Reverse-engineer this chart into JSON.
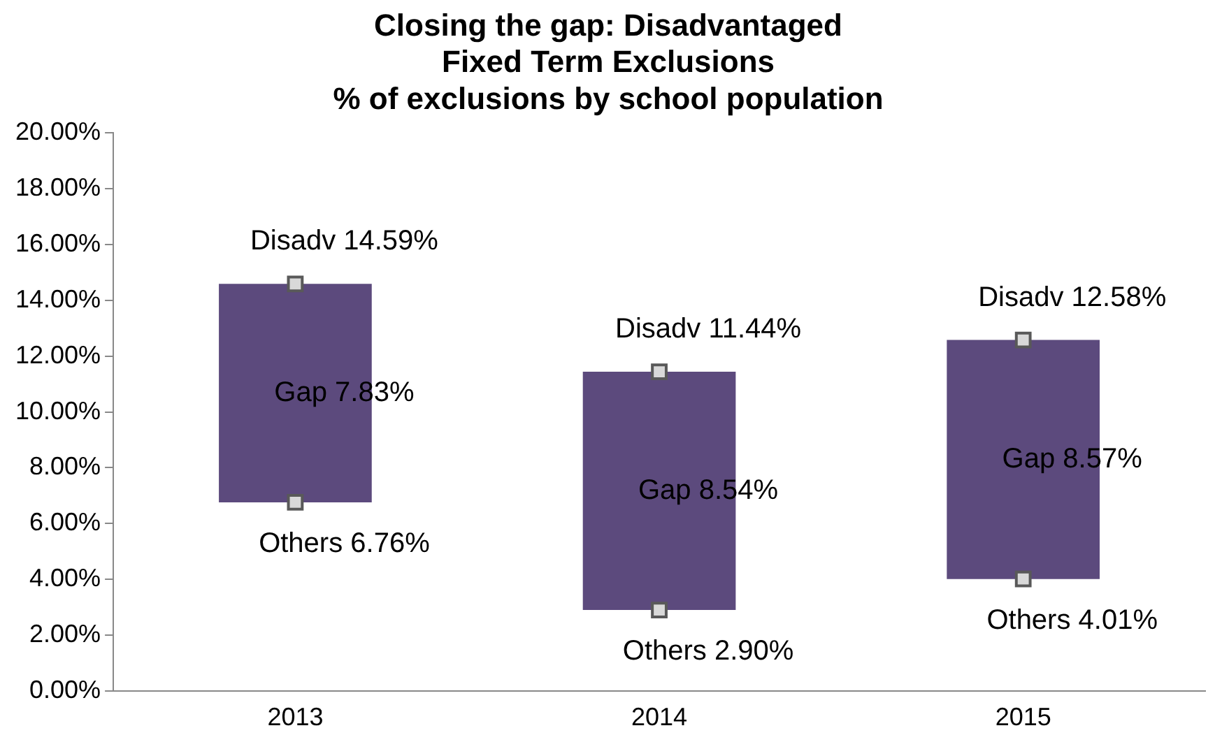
{
  "chart_data": {
    "type": "bar",
    "title": "Closing the gap: Disadvantaged\nFixed Term Exclusions\n% of exclusions by school population",
    "categories": [
      "2013",
      "2014",
      "2015"
    ],
    "ylim": [
      0,
      20
    ],
    "yticks": [
      {
        "value": 0,
        "label": "0.00%"
      },
      {
        "value": 2,
        "label": "2.00%"
      },
      {
        "value": 4,
        "label": "4.00%"
      },
      {
        "value": 6,
        "label": "6.00%"
      },
      {
        "value": 8,
        "label": "8.00%"
      },
      {
        "value": 10,
        "label": "10.00%"
      },
      {
        "value": 12,
        "label": "12.00%"
      },
      {
        "value": 14,
        "label": "14.00%"
      },
      {
        "value": 16,
        "label": "16.00%"
      },
      {
        "value": 18,
        "label": "18.00%"
      },
      {
        "value": 20,
        "label": "20.00%"
      }
    ],
    "grid": false,
    "legend": false,
    "series": [
      {
        "color": "#5c4a7d",
        "base": [
          6.76,
          2.9,
          4.01
        ],
        "values": [
          7.83,
          8.54,
          8.57
        ],
        "value_labels": [
          "Gap 7.83%",
          "Gap 8.54%",
          "Gap 8.57%"
        ]
      },
      {
        "type": "scatter",
        "marker": "square",
        "color": "#d9d9d9",
        "values": [
          14.59,
          11.44,
          12.58
        ],
        "value_labels": [
          "Disadv 14.59%",
          "Disadv 11.44%",
          "Disadv 12.58%"
        ]
      },
      {
        "type": "scatter",
        "marker": "square",
        "color": "#d9d9d9",
        "values": [
          6.76,
          2.9,
          4.01
        ],
        "value_labels": [
          "Others 6.76%",
          "Others 2.90%",
          "Others 4.01%"
        ]
      }
    ]
  }
}
